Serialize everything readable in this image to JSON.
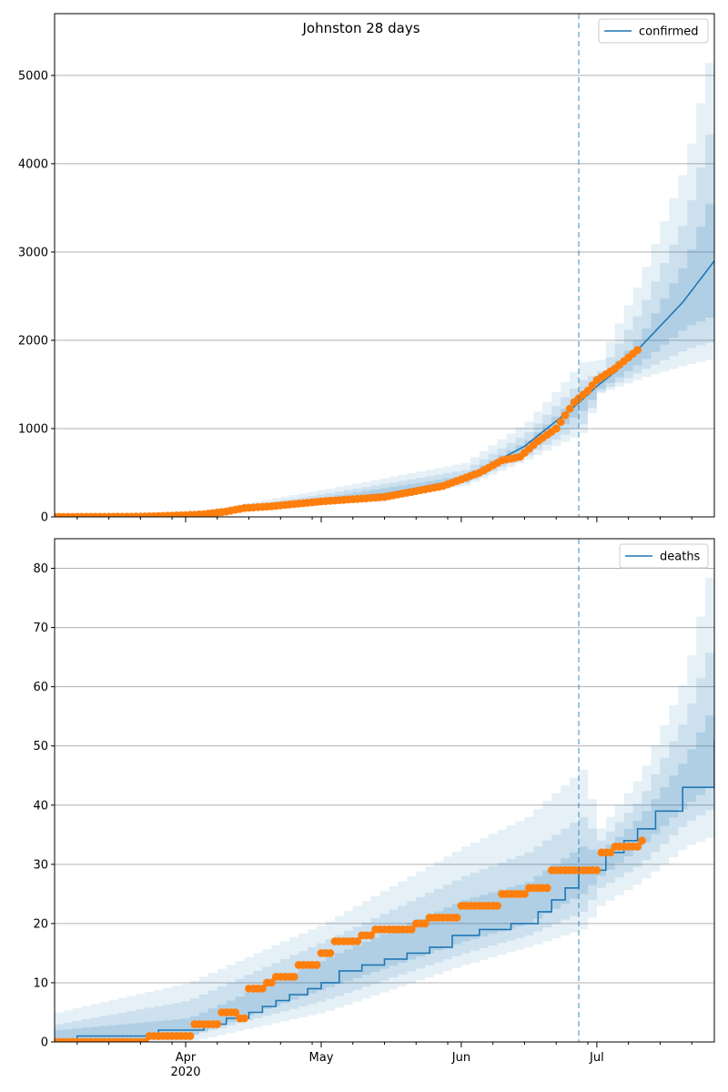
{
  "chart_data": [
    {
      "type": "line",
      "title": "Johnston 28 days",
      "legend": {
        "position": "top-right",
        "entries": [
          "confirmed"
        ]
      },
      "grid": "y-major",
      "x_axis": {
        "range": [
          "2020-03-03",
          "2020-07-27"
        ]
      },
      "ylim": [
        0,
        5700
      ],
      "y_ticks": [
        0,
        1000,
        2000,
        3000,
        4000,
        5000
      ],
      "forecast_start": "2020-06-27",
      "series": [
        {
          "name": "confirmed",
          "role": "model fit and forecast (median)",
          "color": "#1f77b4",
          "points": [
            [
              "2020-03-03",
              3
            ],
            [
              "2020-03-16",
              4
            ],
            [
              "2020-03-30",
              8
            ],
            [
              "2020-04-07",
              30
            ],
            [
              "2020-04-15",
              90
            ],
            [
              "2020-05-01",
              190
            ],
            [
              "2020-05-15",
              260
            ],
            [
              "2020-06-01",
              420
            ],
            [
              "2020-06-15",
              800
            ],
            [
              "2020-06-27",
              1290
            ],
            [
              "2020-07-01",
              1480
            ],
            [
              "2020-07-05",
              1640
            ],
            [
              "2020-07-10",
              1890
            ],
            [
              "2020-07-20",
              2430
            ],
            [
              "2020-07-27",
              2900
            ]
          ]
        },
        {
          "name": "observed",
          "role": "reported data points",
          "color": "#ff7f0e",
          "points": [
            [
              "2020-03-03",
              0
            ],
            [
              "2020-03-20",
              2
            ],
            [
              "2020-03-27",
              10
            ],
            [
              "2020-04-01",
              20
            ],
            [
              "2020-04-05",
              30
            ],
            [
              "2020-04-10",
              60
            ],
            [
              "2020-04-14",
              100
            ],
            [
              "2020-04-20",
              120
            ],
            [
              "2020-05-01",
              175
            ],
            [
              "2020-05-15",
              225
            ],
            [
              "2020-05-28",
              350
            ],
            [
              "2020-06-05",
              500
            ],
            [
              "2020-06-10",
              640
            ],
            [
              "2020-06-14",
              680
            ],
            [
              "2020-06-18",
              860
            ],
            [
              "2020-06-22",
              1000
            ],
            [
              "2020-06-26",
              1300
            ],
            [
              "2020-06-29",
              1430
            ],
            [
              "2020-07-01",
              1550
            ],
            [
              "2020-07-05",
              1680
            ],
            [
              "2020-07-10",
              1890
            ]
          ]
        }
      ],
      "bands": [
        {
          "level": "outer",
          "points": [
            [
              "2020-03-03",
              0,
              5
            ],
            [
              "2020-04-01",
              10,
              40
            ],
            [
              "2020-05-01",
              150,
              310
            ],
            [
              "2020-06-01",
              350,
              610
            ],
            [
              "2020-06-15",
              650,
              1080
            ],
            [
              "2020-06-27",
              950,
              1750
            ],
            [
              "2020-07-01",
              1400,
              1780
            ],
            [
              "2020-07-10",
              1570,
              2700
            ],
            [
              "2020-07-20",
              1720,
              4000
            ],
            [
              "2020-07-27",
              1800,
              5600
            ]
          ]
        },
        {
          "level": "middle",
          "points": [
            [
              "2020-03-03",
              0,
              4
            ],
            [
              "2020-04-01",
              12,
              30
            ],
            [
              "2020-05-01",
              160,
              260
            ],
            [
              "2020-06-01",
              380,
              530
            ],
            [
              "2020-06-15",
              700,
              960
            ],
            [
              "2020-06-27",
              1050,
              1550
            ],
            [
              "2020-07-01",
              1420,
              1650
            ],
            [
              "2020-07-10",
              1650,
              2350
            ],
            [
              "2020-07-20",
              1900,
              3400
            ],
            [
              "2020-07-27",
              2000,
              4700
            ]
          ]
        },
        {
          "level": "inner",
          "points": [
            [
              "2020-03-03",
              1,
              3
            ],
            [
              "2020-04-01",
              15,
              25
            ],
            [
              "2020-05-01",
              170,
              220
            ],
            [
              "2020-06-01",
              400,
              470
            ],
            [
              "2020-06-15",
              750,
              870
            ],
            [
              "2020-06-27",
              1200,
              1400
            ],
            [
              "2020-07-01",
              1450,
              1550
            ],
            [
              "2020-07-10",
              1750,
              2050
            ],
            [
              "2020-07-20",
              2150,
              2900
            ],
            [
              "2020-07-27",
              2300,
              3800
            ]
          ]
        }
      ]
    },
    {
      "type": "line",
      "title": "",
      "legend": {
        "position": "top-right",
        "entries": [
          "deaths"
        ]
      },
      "grid": "y-major",
      "x_axis": {
        "range": [
          "2020-03-03",
          "2020-07-27"
        ],
        "tick_labels": [
          {
            "date": "2020-04-01",
            "label": "Apr",
            "sublabel": "2020"
          },
          {
            "date": "2020-05-01",
            "label": "May"
          },
          {
            "date": "2020-06-01",
            "label": "Jun"
          },
          {
            "date": "2020-07-01",
            "label": "Jul"
          }
        ]
      },
      "ylim": [
        0,
        85
      ],
      "y_ticks": [
        0,
        10,
        20,
        30,
        40,
        50,
        60,
        70,
        80
      ],
      "forecast_start": "2020-06-27",
      "series": [
        {
          "name": "deaths",
          "role": "model fit and forecast (median)",
          "color": "#1f77b4",
          "step": true,
          "points": [
            [
              "2020-03-03",
              0
            ],
            [
              "2020-03-08",
              1
            ],
            [
              "2020-03-26",
              2
            ],
            [
              "2020-04-05",
              3
            ],
            [
              "2020-04-10",
              4
            ],
            [
              "2020-04-15",
              5
            ],
            [
              "2020-04-18",
              6
            ],
            [
              "2020-04-21",
              7
            ],
            [
              "2020-04-24",
              8
            ],
            [
              "2020-04-28",
              9
            ],
            [
              "2020-05-01",
              10
            ],
            [
              "2020-05-05",
              12
            ],
            [
              "2020-05-10",
              13
            ],
            [
              "2020-05-15",
              14
            ],
            [
              "2020-05-20",
              15
            ],
            [
              "2020-05-25",
              16
            ],
            [
              "2020-05-30",
              18
            ],
            [
              "2020-06-05",
              19
            ],
            [
              "2020-06-12",
              20
            ],
            [
              "2020-06-18",
              22
            ],
            [
              "2020-06-21",
              24
            ],
            [
              "2020-06-24",
              26
            ],
            [
              "2020-06-27",
              29
            ],
            [
              "2020-07-03",
              32
            ],
            [
              "2020-07-07",
              34
            ],
            [
              "2020-07-10",
              36
            ],
            [
              "2020-07-14",
              39
            ],
            [
              "2020-07-20",
              43
            ],
            [
              "2020-07-27",
              51
            ]
          ]
        },
        {
          "name": "observed",
          "role": "reported data points",
          "color": "#ff7f0e",
          "points": [
            [
              "2020-03-03",
              0
            ],
            [
              "2020-03-24",
              1
            ],
            [
              "2020-04-03",
              3
            ],
            [
              "2020-04-09",
              5
            ],
            [
              "2020-04-13",
              4
            ],
            [
              "2020-04-15",
              9
            ],
            [
              "2020-04-19",
              10
            ],
            [
              "2020-04-21",
              11
            ],
            [
              "2020-04-26",
              13
            ],
            [
              "2020-05-01",
              15
            ],
            [
              "2020-05-04",
              17
            ],
            [
              "2020-05-10",
              18
            ],
            [
              "2020-05-13",
              19
            ],
            [
              "2020-05-22",
              20
            ],
            [
              "2020-05-25",
              21
            ],
            [
              "2020-06-01",
              23
            ],
            [
              "2020-06-10",
              25
            ],
            [
              "2020-06-16",
              26
            ],
            [
              "2020-06-21",
              29
            ],
            [
              "2020-07-01",
              29
            ],
            [
              "2020-07-02",
              32
            ],
            [
              "2020-07-05",
              33
            ],
            [
              "2020-07-10",
              33
            ],
            [
              "2020-07-11",
              34
            ]
          ]
        }
      ],
      "bands": [
        {
          "level": "outer",
          "points": [
            [
              "2020-03-03",
              0,
              5
            ],
            [
              "2020-04-01",
              0,
              10
            ],
            [
              "2020-05-01",
              5,
              20
            ],
            [
              "2020-06-01",
              13,
              33
            ],
            [
              "2020-06-15",
              16,
              38
            ],
            [
              "2020-06-27",
              19,
              46
            ],
            [
              "2020-07-01",
              23,
              36
            ],
            [
              "2020-07-10",
              27,
              45
            ],
            [
              "2020-07-20",
              33,
              62
            ],
            [
              "2020-07-27",
              35,
              85
            ]
          ]
        },
        {
          "level": "middle",
          "points": [
            [
              "2020-03-03",
              0,
              3
            ],
            [
              "2020-04-01",
              1,
              7
            ],
            [
              "2020-05-01",
              7,
              17
            ],
            [
              "2020-06-01",
              15,
              28
            ],
            [
              "2020-06-15",
              18,
              32
            ],
            [
              "2020-06-27",
              22,
              38
            ],
            [
              "2020-07-01",
              26,
              34
            ],
            [
              "2020-07-10",
              30,
              41
            ],
            [
              "2020-07-20",
              37,
              55
            ],
            [
              "2020-07-27",
              40,
              70
            ]
          ]
        },
        {
          "level": "inner",
          "points": [
            [
              "2020-03-03",
              0,
              2
            ],
            [
              "2020-04-01",
              1,
              4
            ],
            [
              "2020-05-01",
              9,
              14
            ],
            [
              "2020-06-01",
              17,
              24
            ],
            [
              "2020-06-15",
              20,
              27
            ],
            [
              "2020-06-27",
              25,
              33
            ],
            [
              "2020-07-01",
              28,
              32
            ],
            [
              "2020-07-10",
              33,
              38
            ],
            [
              "2020-07-20",
              40,
              48
            ],
            [
              "2020-07-27",
              44,
              58
            ]
          ]
        }
      ]
    }
  ],
  "colors": {
    "model_line": "#1f77b4",
    "observed_points": "#ff7f0e",
    "band_fill": "#1f77b4",
    "forecast_marker": "#1f77b4",
    "grid": "#b0b0b0"
  }
}
